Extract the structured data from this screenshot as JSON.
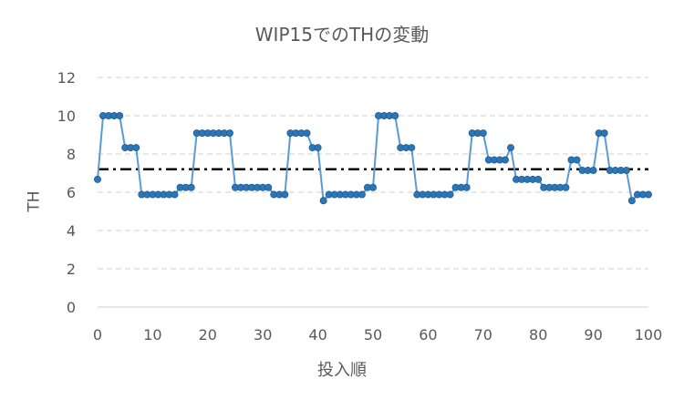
{
  "chart_data": {
    "type": "line",
    "title": "WIP15でのTHの変動",
    "xlabel": "投入順",
    "ylabel": "TH",
    "xlim": [
      0,
      100
    ],
    "ylim": [
      0,
      12
    ],
    "xticks": [
      0,
      10,
      20,
      30,
      40,
      50,
      60,
      70,
      80,
      90,
      100
    ],
    "yticks": [
      0,
      2,
      4,
      6,
      8,
      10,
      12
    ],
    "grid": "horizontal dashed",
    "legend": "none",
    "colors": {
      "series": "#5B9BD5",
      "marker": "#2E75B6",
      "reference": "#000000",
      "grid": "#D9D9D9"
    },
    "series": [
      {
        "x": [
          0,
          1,
          2,
          3,
          4,
          5,
          6,
          7,
          8,
          9,
          10,
          11,
          12,
          13,
          14,
          15,
          16,
          17,
          18,
          19,
          20,
          21,
          22,
          23,
          24,
          25,
          26,
          27,
          28,
          29,
          30,
          31,
          32,
          33,
          34,
          35,
          36,
          37,
          38,
          39,
          40,
          41,
          42,
          43,
          44,
          45,
          46,
          47,
          48,
          49,
          50,
          51,
          52,
          53,
          54,
          55,
          56,
          57,
          58,
          59,
          60,
          61,
          62,
          63,
          64,
          65,
          66,
          67,
          68,
          69,
          70,
          71,
          72,
          73,
          74,
          75,
          76,
          77,
          78,
          79,
          80,
          81,
          82,
          83,
          84,
          85,
          86,
          87,
          88,
          89,
          90,
          91,
          92,
          93,
          94,
          95,
          96,
          97,
          98,
          99,
          100
        ],
        "y": [
          6.67,
          10,
          10,
          10,
          10,
          8.33,
          8.33,
          8.33,
          5.88,
          5.88,
          5.88,
          5.88,
          5.88,
          5.88,
          5.88,
          6.25,
          6.25,
          6.25,
          9.09,
          9.09,
          9.09,
          9.09,
          9.09,
          9.09,
          9.09,
          6.25,
          6.25,
          6.25,
          6.25,
          6.25,
          6.25,
          6.25,
          5.88,
          5.88,
          5.88,
          9.09,
          9.09,
          9.09,
          9.09,
          8.33,
          8.33,
          5.56,
          5.88,
          5.88,
          5.88,
          5.88,
          5.88,
          5.88,
          5.88,
          6.25,
          6.25,
          10,
          10,
          10,
          10,
          8.33,
          8.33,
          8.33,
          5.88,
          5.88,
          5.88,
          5.88,
          5.88,
          5.88,
          5.88,
          6.25,
          6.25,
          6.25,
          9.09,
          9.09,
          9.09,
          7.69,
          7.69,
          7.69,
          7.69,
          8.33,
          6.67,
          6.67,
          6.67,
          6.67,
          6.67,
          6.25,
          6.25,
          6.25,
          6.25,
          6.25,
          7.69,
          7.69,
          7.14,
          7.14,
          7.14,
          9.09,
          9.09,
          7.14,
          7.14,
          7.14,
          7.14,
          5.56,
          5.88,
          5.88,
          5.88
        ]
      }
    ],
    "reference_line": {
      "y": 7.2,
      "style": "dash-dot"
    }
  }
}
